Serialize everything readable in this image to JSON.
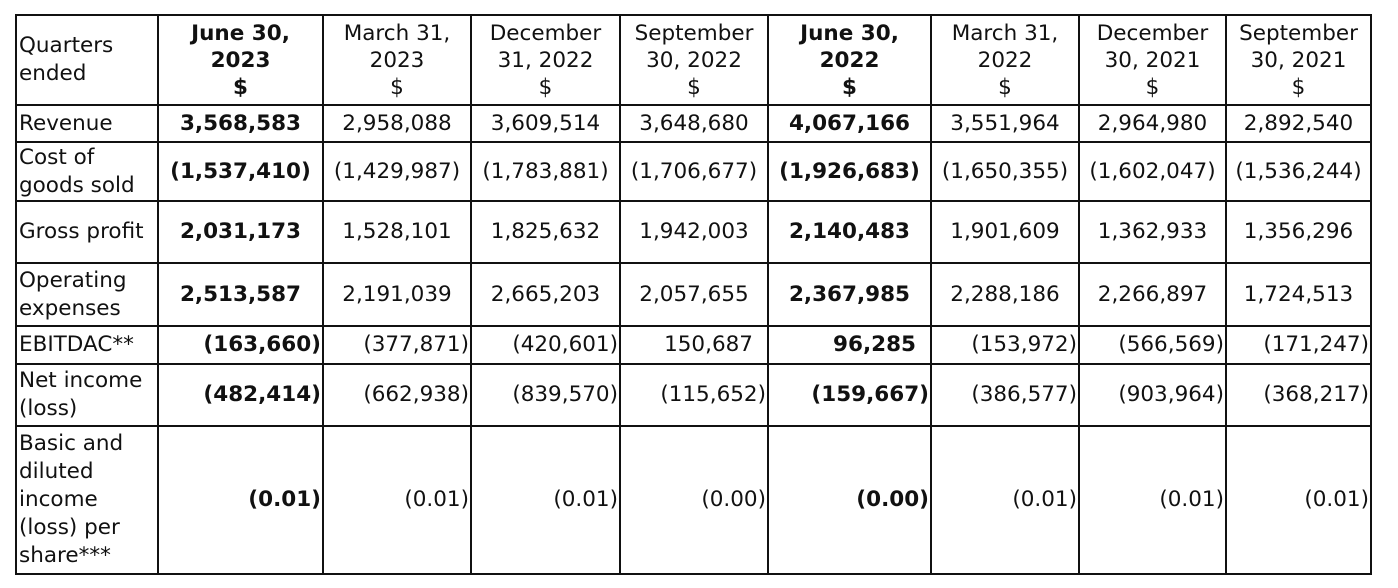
{
  "header": {
    "label": "Quarters ended",
    "columns": [
      {
        "date": "June 30, 2023",
        "unit": "$",
        "bold": true
      },
      {
        "date": "March 31, 2023",
        "unit": "$",
        "bold": false
      },
      {
        "date": "December 31, 2022",
        "unit": "$",
        "bold": false
      },
      {
        "date": "September 30, 2022",
        "unit": "$",
        "bold": false
      },
      {
        "date": "June 30, 2022",
        "unit": "$",
        "bold": true
      },
      {
        "date": "March 31, 2022",
        "unit": "$",
        "bold": false
      },
      {
        "date": "December 30, 2021",
        "unit": "$",
        "bold": false
      },
      {
        "date": "September 30, 2021",
        "unit": "$",
        "bold": false
      }
    ]
  },
  "rows": [
    {
      "label": "Revenue",
      "style": "num",
      "values": [
        "3,568,583",
        "2,958,088",
        "3,609,514",
        "3,648,680",
        "4,067,166",
        "3,551,964",
        "2,964,980",
        "2,892,540"
      ]
    },
    {
      "label": "Cost of goods sold",
      "style": "num",
      "values": [
        "(1,537,410)",
        "(1,429,987)",
        "(1,783,881)",
        "(1,706,677)",
        "(1,926,683)",
        "(1,650,355)",
        "(1,602,047)",
        "(1,536,244)"
      ]
    },
    {
      "label": "Gross profit",
      "style": "num",
      "values": [
        "2,031,173",
        "1,528,101",
        "1,825,632",
        "1,942,003",
        "2,140,483",
        "1,901,609",
        "1,362,933",
        "1,356,296"
      ]
    },
    {
      "label": "Operating expenses",
      "style": "num",
      "values": [
        "2,513,587",
        "2,191,039",
        "2,665,203",
        "2,057,655",
        "2,367,985",
        "2,288,186",
        "2,266,897",
        "1,724,513"
      ]
    },
    {
      "label": "EBITDAC**",
      "style": "right",
      "values": [
        "(163,660)",
        "(377,871)",
        "(420,601)",
        "150,687",
        "96,285",
        "(153,972)",
        "(566,569)",
        "(171,247)"
      ]
    },
    {
      "label": "Net income (loss)",
      "style": "right",
      "values": [
        "(482,414)",
        "(662,938)",
        "(839,570)",
        "(115,652)",
        "(159,667)",
        "(386,577)",
        "(903,964)",
        "(368,217)"
      ]
    },
    {
      "label": "Basic and diluted income (loss) per share***",
      "style": "right",
      "values": [
        "(0.01)",
        "(0.01)",
        "(0.01)",
        "(0.00)",
        "(0.00)",
        "(0.01)",
        "(0.01)",
        "(0.01)"
      ]
    }
  ]
}
